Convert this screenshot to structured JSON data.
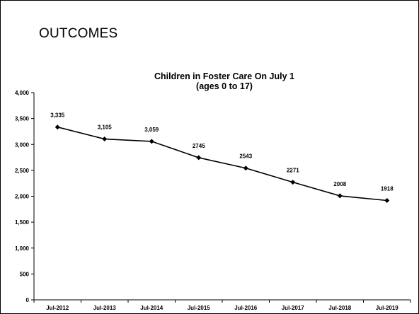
{
  "slide": {
    "title": "OUTCOMES"
  },
  "chart_data": {
    "type": "line",
    "title": "Children in Foster Care On July 1",
    "subtitle": "(ages 0 to 17)",
    "xlabel": "",
    "ylabel": "",
    "categories": [
      "Jul-2012",
      "Jul-2013",
      "Jul-2014",
      "Jul-2015",
      "Jul-2016",
      "Jul-2017",
      "Jul-2018",
      "Jul-2019"
    ],
    "values": [
      3335,
      3105,
      3059,
      2745,
      2543,
      2271,
      2008,
      1918
    ],
    "data_labels": [
      "3,335",
      "3,105",
      "3,059",
      "2745",
      "2543",
      "2271",
      "2008",
      "1918"
    ],
    "ylim": [
      0,
      4000
    ],
    "yticks": [
      0,
      500,
      1000,
      1500,
      2000,
      2500,
      3000,
      3500,
      4000
    ],
    "ytick_labels": [
      "0",
      "500",
      "1,000",
      "1,500",
      "2,000",
      "2,500",
      "3,000",
      "3,500",
      "4,000"
    ],
    "grid": false,
    "legend": "none",
    "line_color": "#000000",
    "marker": "diamond"
  }
}
